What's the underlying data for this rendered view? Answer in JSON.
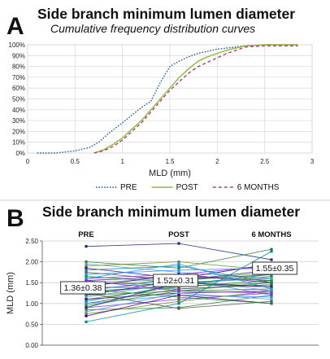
{
  "panel_a": {
    "letter": "A",
    "title": "Side branch minimum lumen diameter",
    "subtitle": "Cumulative frequency distribution curves"
  },
  "panel_b": {
    "letter": "B",
    "title": "Side branch minimum lumen diameter"
  },
  "chart_data": [
    {
      "type": "line",
      "title": "Side branch minimum lumen diameter",
      "subtitle": "Cumulative frequency distribution curves",
      "xlabel": "MLD (mm)",
      "ylabel": "",
      "xlim": [
        0,
        3
      ],
      "ylim": [
        0,
        100
      ],
      "xticks": [
        "0",
        "0.5",
        "1",
        "1.5",
        "2",
        "2.5",
        "3"
      ],
      "yticks": [
        "0%",
        "10%",
        "20%",
        "30%",
        "40%",
        "50%",
        "60%",
        "70%",
        "80%",
        "90%",
        "100%"
      ],
      "grid": true,
      "legend_position": "bottom",
      "series": [
        {
          "name": "PRE",
          "color": "#2a5a9a",
          "style": "dotted",
          "x": [
            0.1,
            0.3,
            0.5,
            0.65,
            0.75,
            0.85,
            1.0,
            1.1,
            1.2,
            1.3,
            1.4,
            1.5,
            1.6,
            1.7,
            1.8,
            1.9,
            2.0,
            2.1,
            2.2,
            2.3,
            2.5,
            2.85
          ],
          "y": [
            0,
            0,
            2,
            5,
            10,
            18,
            28,
            35,
            42,
            48,
            65,
            80,
            85,
            89,
            92,
            94,
            96,
            97,
            98,
            99,
            100,
            100
          ]
        },
        {
          "name": "POST",
          "color": "#8db838",
          "style": "solid",
          "x": [
            0.7,
            0.8,
            0.9,
            1.0,
            1.1,
            1.2,
            1.3,
            1.4,
            1.5,
            1.6,
            1.7,
            1.8,
            1.9,
            2.0,
            2.1,
            2.2,
            2.3,
            2.5,
            2.85
          ],
          "y": [
            0,
            3,
            8,
            14,
            22,
            30,
            40,
            50,
            60,
            70,
            78,
            85,
            89,
            92,
            95,
            97,
            99,
            100,
            100
          ]
        },
        {
          "name": "6 MONTHS",
          "color": "#b04080",
          "style": "dashed",
          "x": [
            0.7,
            0.8,
            0.9,
            1.0,
            1.1,
            1.2,
            1.3,
            1.4,
            1.5,
            1.6,
            1.7,
            1.8,
            1.9,
            2.0,
            2.1,
            2.2,
            2.3,
            2.5,
            2.85
          ],
          "y": [
            0,
            2,
            6,
            12,
            20,
            28,
            38,
            48,
            58,
            66,
            74,
            80,
            84,
            88,
            92,
            95,
            98,
            99,
            99
          ]
        }
      ]
    },
    {
      "type": "line",
      "title": "Side branch minimum lumen diameter",
      "xlabel": "",
      "ylabel": "MLD (mm)",
      "ylim": [
        0,
        2.5
      ],
      "yticks": [
        "0.00",
        "0.50",
        "1.00",
        "1.50",
        "2.00",
        "2.50"
      ],
      "categories": [
        "PRE",
        "POST",
        "6 MONTHS"
      ],
      "grid": true,
      "annotations": [
        "1.36±0.38",
        "1.52±0.31",
        "1.55±0.35"
      ],
      "series_colors": [
        "#1a2e7a",
        "#2e7d32",
        "#5a9bd5",
        "#6b8e23",
        "#4b0082",
        "#008b8b",
        "#555555",
        "#1e90ff",
        "#228b22",
        "#8a2be2"
      ],
      "series": [
        {
          "values": [
            2.37,
            2.44,
            2.05
          ]
        },
        {
          "values": [
            2.0,
            1.85,
            2.3
          ]
        },
        {
          "values": [
            1.95,
            1.75,
            1.6
          ]
        },
        {
          "values": [
            1.9,
            2.0,
            1.8
          ]
        },
        {
          "values": [
            1.85,
            1.6,
            1.95
          ]
        },
        {
          "values": [
            1.8,
            1.9,
            1.5
          ]
        },
        {
          "values": [
            1.75,
            1.55,
            1.7
          ]
        },
        {
          "values": [
            1.7,
            1.8,
            1.85
          ]
        },
        {
          "values": [
            1.65,
            1.5,
            1.4
          ]
        },
        {
          "values": [
            1.6,
            1.7,
            1.9
          ]
        },
        {
          "values": [
            1.55,
            1.65,
            1.55
          ]
        },
        {
          "values": [
            1.5,
            1.45,
            1.65
          ]
        },
        {
          "values": [
            1.5,
            1.6,
            1.3
          ]
        },
        {
          "values": [
            1.45,
            1.55,
            1.75
          ]
        },
        {
          "values": [
            1.4,
            1.7,
            1.5
          ]
        },
        {
          "values": [
            1.4,
            1.35,
            1.45
          ]
        },
        {
          "values": [
            1.35,
            1.5,
            1.6
          ]
        },
        {
          "values": [
            1.3,
            1.6,
            1.2
          ]
        },
        {
          "values": [
            1.3,
            1.4,
            1.55
          ]
        },
        {
          "values": [
            1.25,
            1.45,
            1.4
          ]
        },
        {
          "values": [
            1.2,
            1.55,
            1.8
          ]
        },
        {
          "values": [
            1.2,
            1.3,
            1.35
          ]
        },
        {
          "values": [
            1.15,
            1.5,
            1.6
          ]
        },
        {
          "values": [
            1.1,
            1.4,
            1.5
          ]
        },
        {
          "values": [
            1.1,
            1.25,
            1.3
          ]
        },
        {
          "values": [
            1.05,
            1.45,
            1.7
          ]
        },
        {
          "values": [
            1.0,
            1.35,
            1.45
          ]
        },
        {
          "values": [
            1.0,
            1.2,
            1.15
          ]
        },
        {
          "values": [
            0.95,
            1.3,
            1.5
          ]
        },
        {
          "values": [
            0.9,
            1.1,
            1.25
          ]
        },
        {
          "values": [
            0.9,
            1.5,
            1.4
          ]
        },
        {
          "values": [
            0.85,
            0.9,
            1.2
          ]
        },
        {
          "values": [
            0.8,
            1.25,
            1.1
          ]
        },
        {
          "values": [
            0.75,
            1.05,
            1.3
          ]
        },
        {
          "values": [
            0.7,
            1.2,
            1.0
          ]
        },
        {
          "values": [
            0.56,
            1.0,
            2.25
          ]
        },
        {
          "values": [
            1.25,
            0.88,
            1.05
          ]
        },
        {
          "values": [
            1.6,
            1.95,
            1.35
          ]
        },
        {
          "values": [
            1.35,
            1.15,
            1.0
          ]
        },
        {
          "values": [
            1.55,
            1.3,
            1.25
          ]
        }
      ]
    }
  ]
}
